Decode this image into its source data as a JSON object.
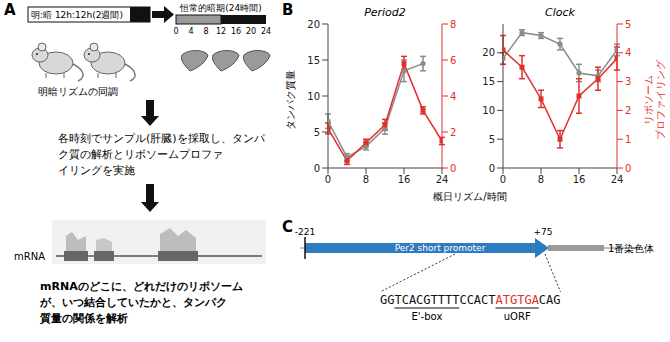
{
  "panels": {
    "A": {
      "letter": "A",
      "cycle_label": "明:暗 12h:12h(2週間)",
      "sync_label": "明暗リズムの同調",
      "dark_label": "恒常的暗期(24時間)",
      "times": [
        0,
        4,
        8,
        12,
        16,
        20,
        24
      ],
      "step1_lines": [
        "各時刻でサンプル(肝臓)を採取し、タンパ",
        "ク質の解析とリボソームプロファ",
        "イリングを実施"
      ],
      "track_label": "mRNA",
      "step2_lines": [
        "mRNAのどこに、どれだけのリボソーム",
        "が、いつ結合していたかと、タンパク",
        "質量の関係を解析"
      ]
    },
    "B": {
      "letter": "B",
      "y_label": "タンパク質量",
      "y2_label_lines": [
        "リボソーム",
        "プロファイリング"
      ],
      "x_label": "概日リズム/時間"
    },
    "C": {
      "letter": "C",
      "start_label": "-221",
      "end_label": "+75",
      "promoter_label": "Per2 short promoter",
      "chromosome_label": "1番染色体",
      "sequence": [
        {
          "text": "GG"
        },
        {
          "text": "TCACGTTTT",
          "label": "E'-box"
        },
        {
          "text": "CCACT"
        },
        {
          "text": "ATGTGA",
          "label": "uORF",
          "color": "#e0302a"
        },
        {
          "text": "CAG"
        }
      ]
    }
  },
  "chart_data": [
    {
      "type": "line",
      "title": "Period2",
      "x": [
        0,
        4,
        8,
        12,
        16,
        20,
        24
      ],
      "xlim": [
        0,
        24
      ],
      "xticks": [
        0,
        8,
        16,
        24
      ],
      "ylim": [
        0,
        20
      ],
      "yticks": [
        0,
        5,
        10,
        15,
        20
      ],
      "y2lim": [
        0,
        8
      ],
      "y2ticks": [
        0,
        2,
        4,
        6,
        8
      ],
      "series": [
        {
          "color": "#8c8c8c",
          "marker": "circle",
          "values": [
            6.5,
            1.5,
            3,
            5.5,
            13.5,
            14.5,
            null
          ],
          "errors": [
            1,
            0.5,
            0.5,
            0.8,
            1.5,
            1,
            null
          ]
        },
        {
          "color": "#e0302a",
          "marker": "square",
          "axis": "y2",
          "values": [
            2.2,
            0.4,
            1.4,
            2.4,
            5.8,
            3.2,
            1.5
          ],
          "errors": [
            0.3,
            0.2,
            0.2,
            0.3,
            0.4,
            0.2,
            0.2
          ]
        }
      ]
    },
    {
      "type": "line",
      "title": "Clock",
      "x": [
        0,
        4,
        8,
        12,
        16,
        20,
        24
      ],
      "xlim": [
        0,
        24
      ],
      "xticks": [
        0,
        8,
        16,
        24
      ],
      "ylim": [
        0,
        25
      ],
      "yticks": [
        0,
        5,
        10,
        15,
        20
      ],
      "y2lim": [
        0,
        5
      ],
      "y2ticks": [
        0,
        1,
        2,
        3,
        4,
        5
      ],
      "series": [
        {
          "color": "#8c8c8c",
          "marker": "circle",
          "values": [
            19,
            23.5,
            23,
            21.5,
            16.5,
            16,
            20.5
          ],
          "errors": [
            1,
            0.5,
            0.5,
            1,
            1.5,
            1,
            1
          ]
        },
        {
          "color": "#e0302a",
          "marker": "square",
          "axis": "y2",
          "values": [
            4.1,
            3.5,
            2.4,
            1,
            2.5,
            3.1,
            3.8
          ],
          "errors": [
            0.5,
            0.4,
            0.3,
            0.3,
            0.6,
            0.4,
            0.4
          ]
        }
      ]
    }
  ]
}
